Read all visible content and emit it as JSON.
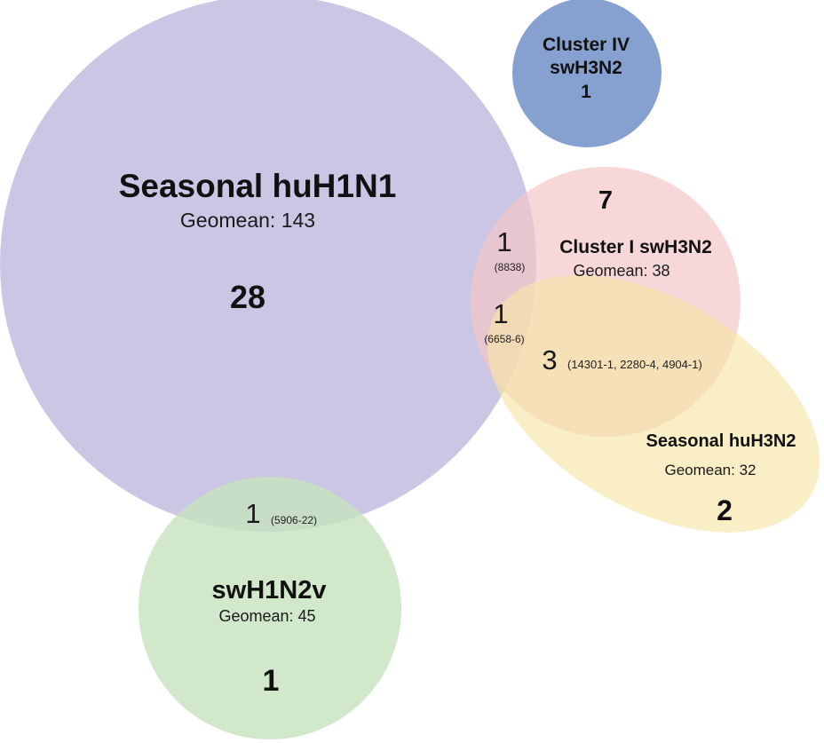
{
  "sets": {
    "huH1N1": {
      "name": "Seasonal huH1N1",
      "geomean": "Geomean: 143",
      "count": "28",
      "color": "#c3bce0"
    },
    "cluster_iv": {
      "name_line1": "Cluster IV",
      "name_line2": "swH3N2",
      "count": "1",
      "color": "#7f9ccd"
    },
    "cluster_i": {
      "name": "Cluster I swH3N2",
      "geomean": "Geomean: 38",
      "count": "7",
      "color": "#f4c6c8"
    },
    "huH3N2": {
      "name": "Seasonal huH3N2",
      "geomean": "Geomean: 32",
      "count": "2",
      "color": "#f6e5a6"
    },
    "swH1N2v": {
      "name": "swH1N2v",
      "geomean": "Geomean: 45",
      "count": "1",
      "color": "#c7e2be"
    }
  },
  "intersections": {
    "h1n1_cluster_i": {
      "count": "1",
      "ids": "(8838)"
    },
    "h1n1_cluster_i_h3n2": {
      "count": "1",
      "ids": "(6658-6)"
    },
    "cluster_i_h3n2": {
      "count": "3",
      "ids": "(14301-1, 2280-4,  4904-1)"
    },
    "h1n1_swh1n2v": {
      "count": "1",
      "ids": "(5906-22)"
    }
  }
}
